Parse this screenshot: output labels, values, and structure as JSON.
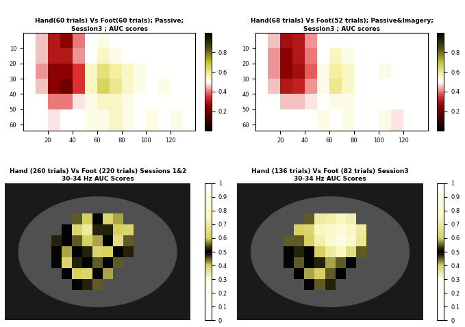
{
  "chart_data": [
    {
      "type": "heatmap",
      "title": "Hand(60 trials) Vs Foot(60 trials); Passive;\nSession3 ; AUC scores",
      "x_edges": [
        0,
        10,
        20,
        30,
        40,
        50,
        60,
        70,
        80,
        90,
        100,
        110,
        120,
        130,
        140
      ],
      "y_edges": [
        0,
        10,
        20,
        30,
        40,
        50,
        64
      ],
      "xlim": [
        0,
        140
      ],
      "ylim": [
        64,
        0
      ],
      "xticks": [
        20,
        40,
        60,
        80,
        100,
        120
      ],
      "yticks": [
        10,
        20,
        30,
        40,
        50,
        60
      ],
      "cells": [
        [
          0.5,
          0.45,
          0.3,
          0.25,
          0.4,
          0.5,
          0.52,
          0.5,
          0.5,
          0.5,
          0.5,
          0.5,
          0.5,
          0.5
        ],
        [
          0.5,
          0.45,
          0.3,
          0.3,
          0.42,
          0.5,
          0.55,
          0.52,
          0.5,
          0.5,
          0.5,
          0.5,
          0.5,
          0.5
        ],
        [
          0.5,
          0.42,
          0.25,
          0.25,
          0.35,
          0.55,
          0.62,
          0.58,
          0.55,
          0.52,
          0.5,
          0.5,
          0.5,
          0.5
        ],
        [
          0.5,
          0.45,
          0.25,
          0.2,
          0.35,
          0.55,
          0.65,
          0.6,
          0.55,
          0.52,
          0.5,
          0.52,
          0.5,
          0.5
        ],
        [
          0.5,
          0.5,
          0.4,
          0.4,
          0.48,
          0.52,
          0.55,
          0.55,
          0.52,
          0.5,
          0.5,
          0.5,
          0.5,
          0.5
        ],
        [
          0.5,
          0.5,
          0.48,
          0.5,
          0.5,
          0.52,
          0.52,
          0.55,
          0.52,
          0.5,
          0.52,
          0.5,
          0.52,
          0.5
        ]
      ],
      "color_range": [
        0,
        1
      ],
      "color_ticks": [
        0.2,
        0.4,
        0.6,
        0.8
      ]
    },
    {
      "type": "heatmap",
      "title": "Hand(68 trials) Vs Foot(52 trials); Passive&Imagery;\nSession3 ; AUC scores",
      "x_edges": [
        0,
        10,
        20,
        30,
        40,
        50,
        60,
        70,
        80,
        90,
        100,
        110,
        120,
        130,
        140
      ],
      "y_edges": [
        0,
        10,
        20,
        30,
        40,
        50,
        64
      ],
      "xlim": [
        0,
        140
      ],
      "ylim": [
        64,
        0
      ],
      "xticks": [
        20,
        40,
        60,
        80,
        100,
        120
      ],
      "yticks": [
        10,
        20,
        30,
        40,
        50,
        60
      ],
      "cells": [
        [
          0.5,
          0.45,
          0.28,
          0.3,
          0.42,
          0.5,
          0.5,
          0.5,
          0.5,
          0.5,
          0.5,
          0.5,
          0.5,
          0.5
        ],
        [
          0.5,
          0.42,
          0.25,
          0.3,
          0.4,
          0.5,
          0.55,
          0.52,
          0.5,
          0.5,
          0.5,
          0.5,
          0.5,
          0.5
        ],
        [
          0.5,
          0.42,
          0.25,
          0.28,
          0.38,
          0.52,
          0.58,
          0.55,
          0.5,
          0.5,
          0.52,
          0.5,
          0.5,
          0.5
        ],
        [
          0.5,
          0.45,
          0.3,
          0.32,
          0.42,
          0.52,
          0.6,
          0.55,
          0.5,
          0.5,
          0.5,
          0.5,
          0.5,
          0.5
        ],
        [
          0.5,
          0.5,
          0.45,
          0.45,
          0.48,
          0.5,
          0.52,
          0.52,
          0.5,
          0.5,
          0.5,
          0.5,
          0.5,
          0.5
        ],
        [
          0.5,
          0.5,
          0.5,
          0.5,
          0.5,
          0.52,
          0.5,
          0.52,
          0.5,
          0.5,
          0.52,
          0.48,
          0.5,
          0.5
        ]
      ],
      "color_range": [
        0,
        1
      ],
      "color_ticks": [
        0.2,
        0.4,
        0.6,
        0.8
      ]
    },
    {
      "type": "electrode_map",
      "title": "Hand (260 trials) Vs Foot (220 trials) Sessions 1&2\n30-34 Hz AUC Scores",
      "tick_labels": false,
      "cells": [
        [
          null,
          null,
          0.55,
          0.6,
          0.5,
          0.62,
          0.58,
          null,
          null
        ],
        [
          null,
          0.5,
          0.62,
          0.7,
          0.52,
          0.48,
          0.6,
          0.62,
          null
        ],
        [
          0.48,
          0.5,
          0.45,
          0.6,
          0.58,
          0.5,
          0.65,
          0.55,
          null
        ],
        [
          0.5,
          0.42,
          0.5,
          0.52,
          0.62,
          0.6,
          0.5,
          0.48,
          null
        ],
        [
          0.5,
          0.62,
          0.48,
          0.5,
          0.55,
          0.5,
          0.45,
          null,
          null
        ],
        [
          null,
          0.5,
          0.6,
          0.62,
          0.5,
          0.42,
          null,
          null,
          null
        ],
        [
          null,
          null,
          0.5,
          0.48,
          0.55,
          null,
          null,
          null,
          null
        ]
      ],
      "color_range": [
        0,
        1
      ],
      "color_ticks": [
        0,
        0.1,
        0.2,
        0.3,
        0.4,
        0.5,
        0.6,
        0.7,
        0.8,
        0.9,
        1
      ]
    },
    {
      "type": "electrode_map",
      "title": "Hand (136 trials) Vs Foot (82 trials) Session3\n30-34 Hz AUC Scores",
      "tick_labels": false,
      "cells": [
        [
          null,
          null,
          0.55,
          0.7,
          0.72,
          0.75,
          0.72,
          null,
          null
        ],
        [
          null,
          0.6,
          0.62,
          0.75,
          0.8,
          0.85,
          0.78,
          0.7,
          null
        ],
        [
          0.45,
          0.55,
          0.6,
          0.72,
          0.82,
          0.9,
          0.8,
          0.68,
          null
        ],
        [
          0.5,
          0.48,
          0.5,
          0.6,
          0.7,
          0.75,
          0.65,
          0.55,
          null
        ],
        [
          0.5,
          0.45,
          0.5,
          0.52,
          0.58,
          0.55,
          0.5,
          null,
          null
        ],
        [
          null,
          0.5,
          0.42,
          0.6,
          0.55,
          0.5,
          null,
          null,
          null
        ],
        [
          null,
          null,
          0.5,
          0.45,
          0.52,
          null,
          null,
          null,
          null
        ]
      ],
      "color_range": [
        0,
        1
      ],
      "color_ticks": [
        0,
        0.1,
        0.2,
        0.3,
        0.4,
        0.5,
        0.6,
        0.7,
        0.8,
        0.9,
        1
      ]
    }
  ]
}
